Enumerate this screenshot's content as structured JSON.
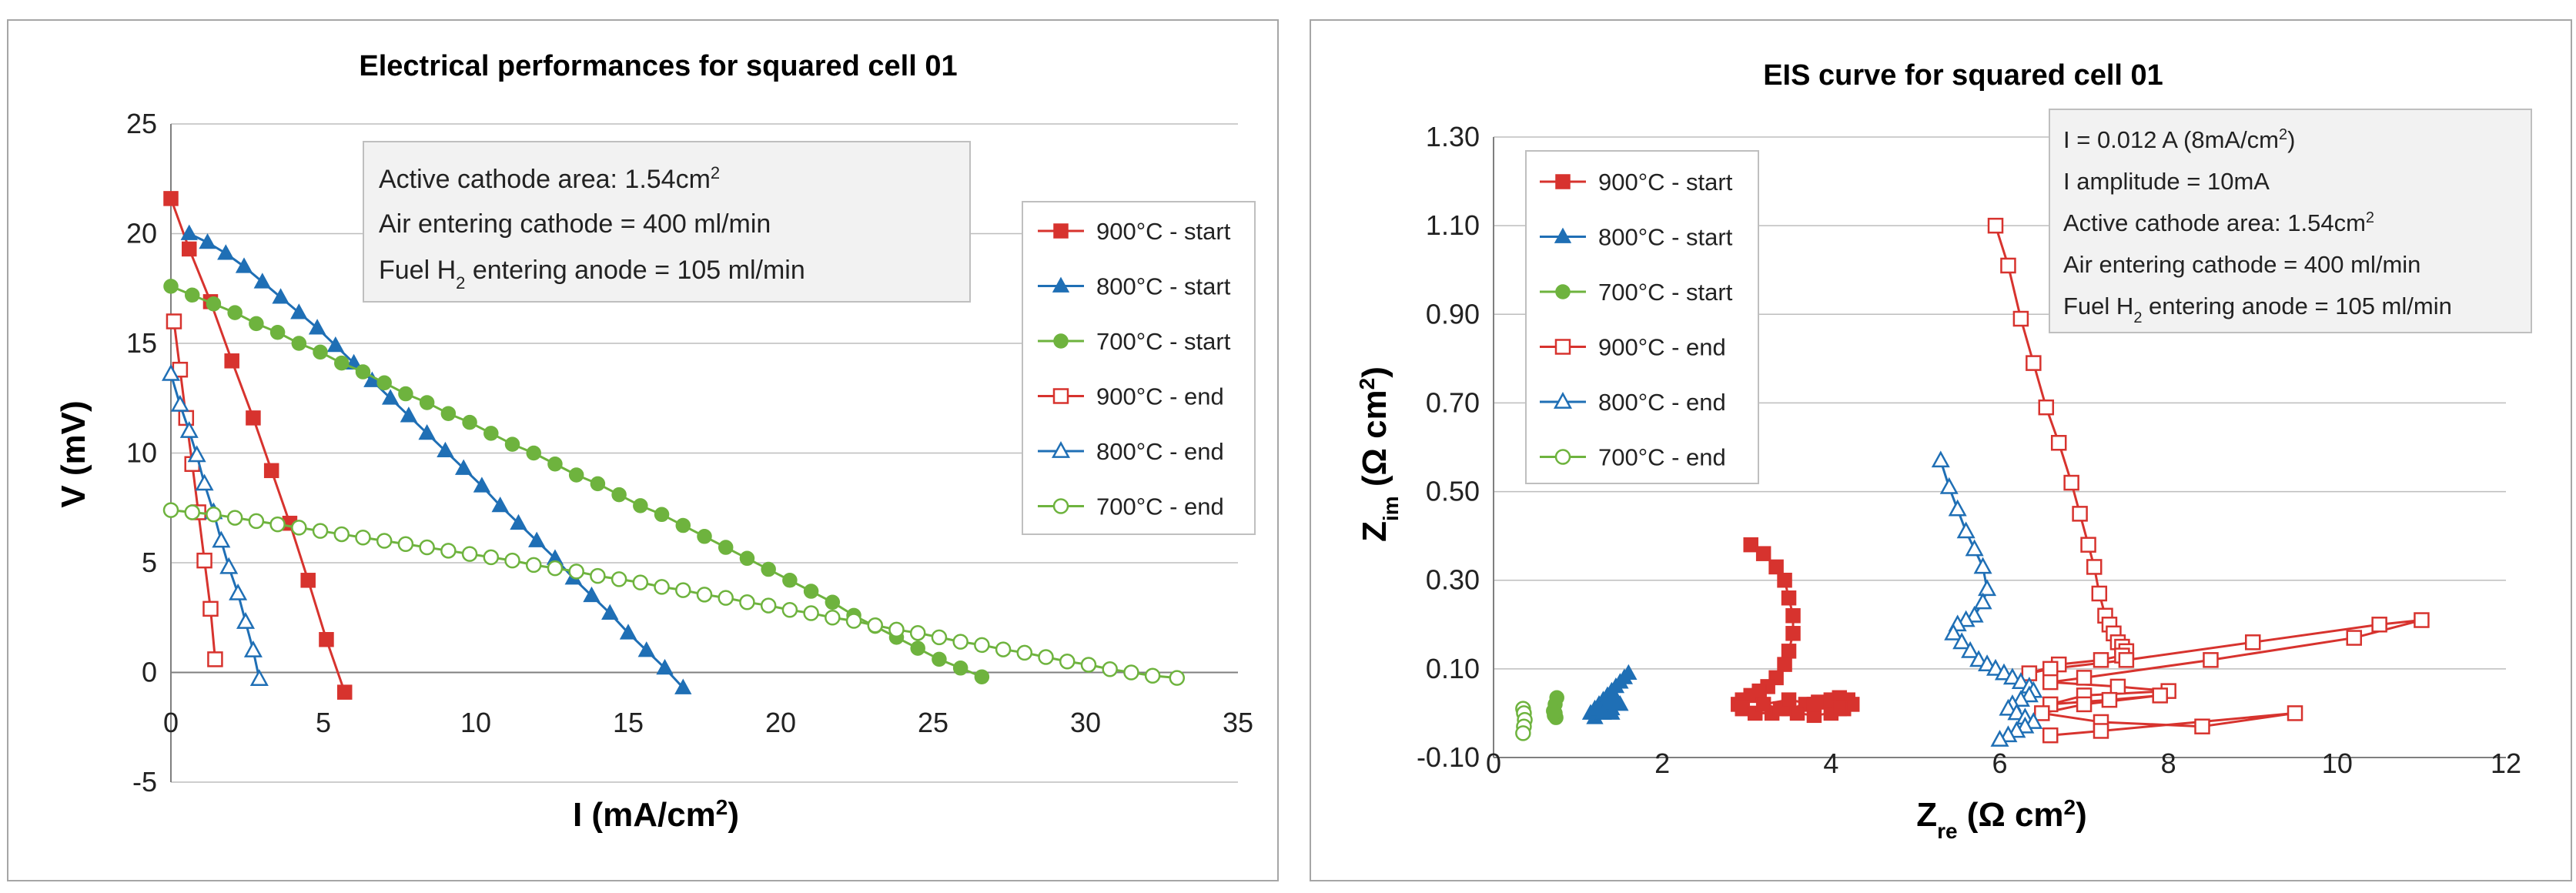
{
  "colors": {
    "s900": "#d7332e",
    "s800": "#1f6fb5",
    "s700": "#6eb33e",
    "grid": "#bdbdbd",
    "panel_border": "#a6a6a6",
    "info_bg": "#f2f2f2"
  },
  "chart_data": [
    {
      "type": "scatter",
      "title": "Electrical performances for squared cell 01",
      "xlabel": "I (mA/cm²)",
      "xlabel_main": "I (mA/cm",
      "xlabel_sup": "2",
      "xlabel_tail": ")",
      "ylabel": "V (mV)",
      "xlim": [
        0,
        35
      ],
      "ylim": [
        -5,
        25
      ],
      "x_ticks": [
        "0",
        "5",
        "10",
        "15",
        "20",
        "25",
        "30",
        "35"
      ],
      "y_ticks": [
        "-5",
        "0",
        "5",
        "10",
        "15",
        "20",
        "25"
      ],
      "grid": "horizontal",
      "legend_position": "right",
      "info_box": {
        "line1_main": "Active cathode area: 1.54cm",
        "line1_sup": "2",
        "line2": "Air entering cathode = 400 ml/min",
        "line3_pre": "Fuel H",
        "line3_sub": "2",
        "line3_post": " entering anode = 105 ml/min"
      },
      "series": [
        {
          "name": "900°C - start",
          "marker": "square-filled",
          "color": "#d7332e",
          "x": [
            0,
            0.6,
            1.3,
            2.0,
            2.7,
            3.3,
            3.9,
            4.5,
            5.1,
            5.7
          ],
          "y": [
            21.6,
            19.3,
            16.9,
            14.2,
            11.6,
            9.2,
            6.8,
            4.2,
            1.5,
            -0.9
          ]
        },
        {
          "name": "800°C - start",
          "marker": "triangle-filled",
          "color": "#1f6fb5",
          "x": [
            0.6,
            1.2,
            1.8,
            2.4,
            3.0,
            3.6,
            4.2,
            4.8,
            5.4,
            6.0,
            6.6,
            7.2,
            7.8,
            8.4,
            9.0,
            9.6,
            10.2,
            10.8,
            11.4,
            12.0,
            12.6,
            13.2,
            13.8,
            14.4,
            15.0,
            15.6,
            16.2,
            16.8
          ],
          "y": [
            20.0,
            19.6,
            19.1,
            18.5,
            17.8,
            17.1,
            16.4,
            15.7,
            14.9,
            14.1,
            13.3,
            12.5,
            11.7,
            10.9,
            10.1,
            9.3,
            8.5,
            7.6,
            6.8,
            6.0,
            5.2,
            4.3,
            3.5,
            2.7,
            1.8,
            1.0,
            0.2,
            -0.7
          ]
        },
        {
          "name": "700°C - start",
          "marker": "circle-filled",
          "color": "#6eb33e",
          "x": [
            0,
            0.7,
            1.4,
            2.1,
            2.8,
            3.5,
            4.2,
            4.9,
            5.6,
            6.3,
            7.0,
            7.7,
            8.4,
            9.1,
            9.8,
            10.5,
            11.2,
            11.9,
            12.6,
            13.3,
            14.0,
            14.7,
            15.4,
            16.1,
            16.8,
            17.5,
            18.2,
            18.9,
            19.6,
            20.3,
            21.0,
            21.7,
            22.4,
            23.1,
            23.8,
            24.5,
            25.2,
            25.9,
            26.6
          ],
          "y": [
            17.6,
            17.2,
            16.8,
            16.4,
            15.9,
            15.5,
            15.0,
            14.6,
            14.1,
            13.7,
            13.2,
            12.7,
            12.3,
            11.8,
            11.4,
            10.9,
            10.4,
            10.0,
            9.5,
            9.0,
            8.6,
            8.1,
            7.6,
            7.2,
            6.7,
            6.2,
            5.7,
            5.2,
            4.7,
            4.2,
            3.7,
            3.2,
            2.6,
            2.1,
            1.6,
            1.1,
            0.6,
            0.2,
            -0.2
          ]
        },
        {
          "name": "900°C - end",
          "marker": "square-open",
          "color": "#d7332e",
          "x": [
            0.1,
            0.3,
            0.5,
            0.7,
            0.9,
            1.1,
            1.3,
            1.45
          ],
          "y": [
            16.0,
            13.8,
            11.6,
            9.5,
            7.3,
            5.1,
            2.9,
            0.6
          ]
        },
        {
          "name": "800°C - end",
          "marker": "triangle-open",
          "color": "#1f6fb5",
          "x": [
            0,
            0.3,
            0.6,
            0.85,
            1.1,
            1.4,
            1.65,
            1.9,
            2.2,
            2.45,
            2.7,
            2.9
          ],
          "y": [
            13.6,
            12.2,
            11.0,
            9.9,
            8.6,
            7.3,
            6.0,
            4.8,
            3.6,
            2.3,
            1.0,
            -0.3
          ]
        },
        {
          "name": "700°C - end",
          "marker": "circle-open",
          "color": "#6eb33e",
          "x": [
            0,
            0.7,
            1.4,
            2.1,
            2.8,
            3.5,
            4.2,
            4.9,
            5.6,
            6.3,
            7.0,
            7.7,
            8.4,
            9.1,
            9.8,
            10.5,
            11.2,
            11.9,
            12.6,
            13.3,
            14.0,
            14.7,
            15.4,
            16.1,
            16.8,
            17.5,
            18.2,
            18.9,
            19.6,
            20.3,
            21.0,
            21.7,
            22.4,
            23.1,
            23.8,
            24.5,
            25.2,
            25.9,
            26.6,
            27.3,
            28.0,
            28.7,
            29.4,
            30.1,
            30.8,
            31.5,
            32.2,
            33.0
          ],
          "y": [
            7.4,
            7.3,
            7.2,
            7.05,
            6.9,
            6.75,
            6.6,
            6.45,
            6.3,
            6.15,
            6.0,
            5.85,
            5.7,
            5.55,
            5.4,
            5.25,
            5.1,
            4.9,
            4.75,
            4.6,
            4.4,
            4.25,
            4.1,
            3.9,
            3.75,
            3.55,
            3.4,
            3.2,
            3.05,
            2.85,
            2.7,
            2.5,
            2.35,
            2.15,
            1.95,
            1.8,
            1.6,
            1.4,
            1.25,
            1.05,
            0.9,
            0.7,
            0.5,
            0.35,
            0.15,
            0.0,
            -0.15,
            -0.25
          ]
        }
      ]
    },
    {
      "type": "scatter",
      "title": "EIS curve for squared cell 01",
      "xlabel": "Zre (Ω cm²)",
      "xlabel_main": "Z",
      "xlabel_sub": "re",
      "xlabel_tail": " (Ω cm",
      "xlabel_sup": "2",
      "xlabel_close": ")",
      "ylabel": "Zim (Ω cm²)",
      "ylabel_main": "Z",
      "ylabel_sub": "im",
      "ylabel_tail": " (Ω cm",
      "ylabel_sup": "2",
      "ylabel_close": ")",
      "xlim": [
        0,
        12
      ],
      "ylim": [
        -0.1,
        1.3
      ],
      "x_ticks": [
        "0",
        "2",
        "4",
        "6",
        "8",
        "10",
        "12"
      ],
      "y_ticks": [
        "-0.10",
        "0.10",
        "0.30",
        "0.50",
        "0.70",
        "0.90",
        "1.10",
        "1.30"
      ],
      "grid": "horizontal",
      "legend_position": "top-left",
      "info_box": {
        "line1_pre": "I = 0.012 A (8mA/cm",
        "line1_sup": "2",
        "line1_post": ")",
        "line2": "I amplitude = 10mA",
        "line3_main": "Active cathode area: 1.54cm",
        "line3_sup": "2",
        "line4": "Air entering cathode = 400 ml/min",
        "line5_pre": "Fuel H",
        "line5_sub": "2",
        "line5_post": " entering anode = 105 ml/min"
      },
      "series": [
        {
          "name": "900°C - start",
          "marker": "square-filled",
          "color": "#d7332e",
          "x": [
            3.05,
            3.2,
            3.35,
            3.45,
            3.5,
            3.55,
            3.55,
            3.5,
            3.45,
            3.35,
            3.25,
            3.15,
            3.05,
            2.95,
            2.9,
            2.95,
            3.1,
            3.3,
            3.5,
            3.7,
            3.85,
            4.0,
            4.1,
            4.2,
            4.25,
            4.15,
            4.0,
            3.8,
            3.6,
            3.4,
            3.2,
            3.5,
            3.8,
            4.1
          ],
          "y": [
            0.38,
            0.36,
            0.33,
            0.3,
            0.26,
            0.22,
            0.18,
            0.14,
            0.11,
            0.08,
            0.06,
            0.05,
            0.04,
            0.03,
            0.02,
            0.01,
            0.0,
            0.0,
            0.01,
            0.02,
            0.025,
            0.03,
            0.035,
            0.03,
            0.02,
            0.01,
            0.0,
            -0.005,
            0.0,
            0.01,
            0.02,
            0.03,
            0.02,
            0.01
          ]
        },
        {
          "name": "800°C - start",
          "marker": "triangle-filled",
          "color": "#1f6fb5",
          "x": [
            1.6,
            1.55,
            1.5,
            1.45,
            1.4,
            1.35,
            1.3,
            1.25,
            1.2,
            1.15,
            1.2,
            1.3,
            1.4,
            1.5,
            1.45,
            1.35,
            1.25,
            1.3,
            1.4
          ],
          "y": [
            0.09,
            0.08,
            0.07,
            0.06,
            0.05,
            0.04,
            0.03,
            0.02,
            0.01,
            0.0,
            -0.01,
            0.0,
            0.01,
            0.02,
            0.03,
            0.02,
            0.01,
            0.0,
            0.0
          ]
        },
        {
          "name": "700°C - start",
          "marker": "circle-filled",
          "color": "#6eb33e",
          "x": [
            0.75,
            0.73,
            0.71,
            0.72,
            0.74,
            0.73
          ],
          "y": [
            0.035,
            0.02,
            0.005,
            -0.005,
            -0.01,
            0.0
          ]
        },
        {
          "name": "900°C - end",
          "marker": "square-open",
          "color": "#d7332e",
          "x": [
            5.95,
            6.1,
            6.25,
            6.4,
            6.55,
            6.7,
            6.85,
            6.95,
            7.05,
            7.12,
            7.18,
            7.25,
            7.3,
            7.35,
            7.4,
            7.45,
            7.5,
            7.45,
            7.2,
            6.7,
            6.35,
            6.6,
            7.5,
            9.0,
            10.5,
            11.0,
            10.2,
            8.5,
            7.0,
            6.6,
            7.4,
            8.0,
            7.0,
            6.6,
            7.3,
            7.9,
            7.0,
            6.5,
            7.2,
            8.4,
            9.5,
            7.2,
            6.6
          ],
          "y": [
            1.1,
            1.01,
            0.89,
            0.79,
            0.69,
            0.61,
            0.52,
            0.45,
            0.38,
            0.33,
            0.27,
            0.22,
            0.2,
            0.18,
            0.16,
            0.15,
            0.14,
            0.13,
            0.12,
            0.11,
            0.09,
            0.1,
            0.12,
            0.16,
            0.2,
            0.21,
            0.17,
            0.12,
            0.08,
            0.07,
            0.06,
            0.05,
            0.04,
            0.02,
            0.03,
            0.04,
            0.02,
            0.0,
            -0.02,
            -0.03,
            0.0,
            -0.04,
            -0.05
          ]
        },
        {
          "name": "800°C - end",
          "marker": "triangle-open",
          "color": "#1f6fb5",
          "x": [
            5.3,
            5.4,
            5.5,
            5.6,
            5.7,
            5.8,
            5.85,
            5.8,
            5.7,
            5.6,
            5.5,
            5.45,
            5.55,
            5.65,
            5.75,
            5.85,
            5.95,
            6.05,
            6.15,
            6.25,
            6.35,
            6.4,
            6.35,
            6.25,
            6.15,
            6.1,
            6.2,
            6.3,
            6.4,
            6.3,
            6.2,
            6.1,
            6.0
          ],
          "y": [
            0.57,
            0.51,
            0.46,
            0.41,
            0.37,
            0.33,
            0.28,
            0.25,
            0.22,
            0.21,
            0.2,
            0.18,
            0.16,
            0.14,
            0.12,
            0.11,
            0.1,
            0.09,
            0.08,
            0.07,
            0.06,
            0.05,
            0.04,
            0.03,
            0.02,
            0.01,
            0.0,
            -0.01,
            -0.02,
            -0.03,
            -0.04,
            -0.05,
            -0.06
          ]
        },
        {
          "name": "700°C - end",
          "marker": "circle-open",
          "color": "#6eb33e",
          "x": [
            0.35,
            0.36,
            0.37,
            0.36,
            0.35
          ],
          "y": [
            0.01,
            0.0,
            -0.015,
            -0.03,
            -0.045
          ]
        }
      ]
    }
  ]
}
